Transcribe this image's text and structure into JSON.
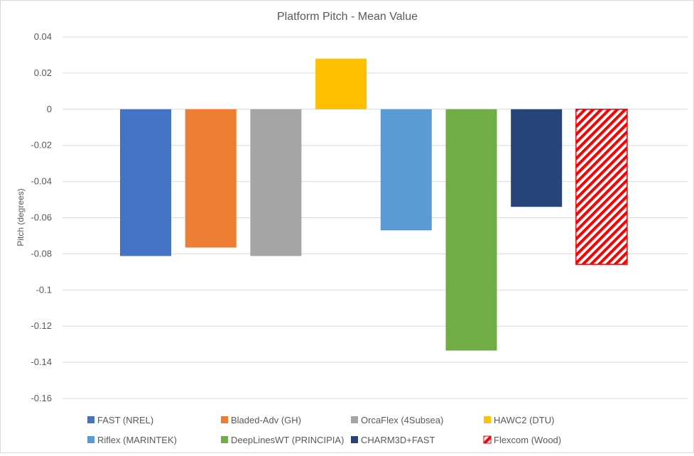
{
  "chart_data": {
    "type": "bar",
    "title": "Platform Pitch - Mean Value",
    "xlabel": "",
    "ylabel": "Pitch (degrees)",
    "ylim": [
      -0.16,
      0.04
    ],
    "yticks": [
      0.04,
      0.02,
      0,
      -0.02,
      -0.04,
      -0.06,
      -0.08,
      -0.1,
      -0.12,
      -0.14,
      -0.16
    ],
    "ytick_labels": [
      "0.04",
      "0.02",
      "0",
      "-0.02",
      "-0.04",
      "-0.06",
      "-0.08",
      "-0.1",
      "-0.12",
      "-0.14",
      "-0.16"
    ],
    "grid": true,
    "legend_position": "bottom",
    "series": [
      {
        "name": "FAST (NREL)",
        "value": -0.0812,
        "color": "#4472C4",
        "pattern": "solid"
      },
      {
        "name": "Bladed-Adv (GH)",
        "value": -0.0765,
        "color": "#ED7D31",
        "pattern": "solid"
      },
      {
        "name": "OrcaFlex (4Subsea)",
        "value": -0.0812,
        "color": "#A5A5A5",
        "pattern": "solid"
      },
      {
        "name": "HAWC2 (DTU)",
        "value": 0.028,
        "color": "#FFC000",
        "pattern": "solid"
      },
      {
        "name": "Riflex (MARINTEK)",
        "value": -0.067,
        "color": "#5B9BD5",
        "pattern": "solid"
      },
      {
        "name": "DeepLinesWT (PRINCIPIA)",
        "value": -0.1335,
        "color": "#70AD47",
        "pattern": "solid"
      },
      {
        "name": "CHARM3D+FAST",
        "value": -0.054,
        "color": "#264478",
        "pattern": "solid"
      },
      {
        "name": "Flexcom (Wood)",
        "value": -0.0858,
        "color": "#FF0000",
        "pattern": "diagonal-stripes"
      }
    ]
  }
}
